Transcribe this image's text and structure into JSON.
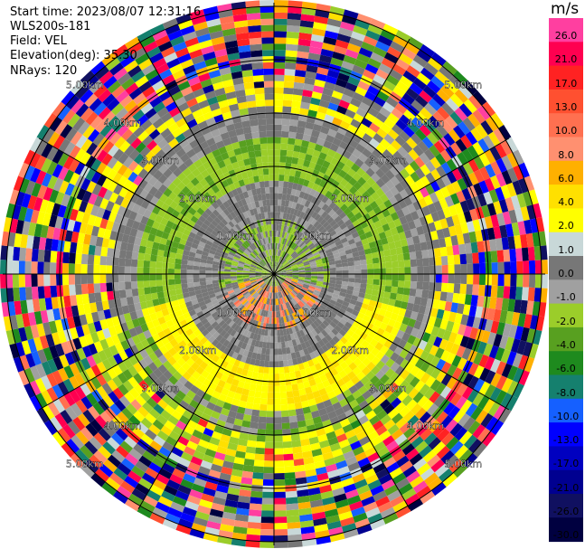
{
  "header": {
    "start_time": "Start time: 2023/08/07 12:31:16",
    "radar": "WLS200s-181",
    "field": "Field: VEL",
    "elevation": "Elevation(deg): 35.30",
    "nrays": "NRays: 120"
  },
  "colorbar": {
    "unit": "m/s",
    "bins": [
      {
        "label": "26.0",
        "color": "#ff3fa0"
      },
      {
        "label": "21.0",
        "color": "#ff0050"
      },
      {
        "label": "17.0",
        "color": "#ff2222"
      },
      {
        "label": "13.0",
        "color": "#ff5030"
      },
      {
        "label": "10.0",
        "color": "#ff7050"
      },
      {
        "label": "8.0",
        "color": "#ff9070"
      },
      {
        "label": "6.0",
        "color": "#ffb000"
      },
      {
        "label": "4.0",
        "color": "#ffe000"
      },
      {
        "label": "2.0",
        "color": "#ffff00"
      },
      {
        "label": "1.0",
        "color": "#c8d8d8"
      },
      {
        "label": "0.0",
        "color": "#777777"
      },
      {
        "label": "-1.0",
        "color": "#a0a0a0"
      },
      {
        "label": "-2.0",
        "color": "#9bcd2a"
      },
      {
        "label": "-4.0",
        "color": "#58a020"
      },
      {
        "label": "-6.0",
        "color": "#1e8a1e"
      },
      {
        "label": "-8.0",
        "color": "#15806e"
      },
      {
        "label": "-10.0",
        "color": "#1560ff"
      },
      {
        "label": "-13.0",
        "color": "#0000ff"
      },
      {
        "label": "-17.0",
        "color": "#0000c0"
      },
      {
        "label": "-21.0",
        "color": "#000090"
      },
      {
        "label": "-26.0",
        "color": "#101060"
      },
      {
        "label": "-30.0",
        "color": "#000040"
      }
    ]
  },
  "range_rings": [
    {
      "label": "1.00km"
    },
    {
      "label": "2.00km"
    },
    {
      "label": "3.00km"
    },
    {
      "label": "4.00km"
    },
    {
      "label": "5.00km"
    }
  ]
}
